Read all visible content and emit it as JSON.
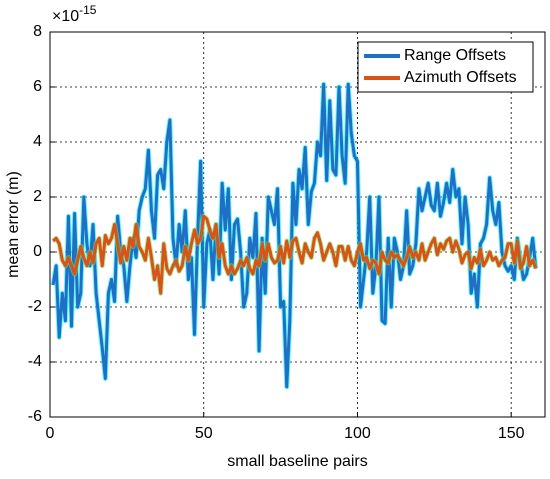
{
  "chart_data": {
    "type": "line",
    "y_exponent_label": "×10",
    "y_exponent_power": "-15",
    "xlabel": "small baseline pairs",
    "ylabel": "mean error (m)",
    "x": [
      1,
      2,
      3,
      4,
      5,
      6,
      7,
      8,
      9,
      10,
      11,
      12,
      13,
      14,
      15,
      16,
      17,
      18,
      19,
      20,
      21,
      22,
      23,
      24,
      25,
      26,
      27,
      28,
      29,
      30,
      31,
      32,
      33,
      34,
      35,
      36,
      37,
      38,
      39,
      40,
      41,
      42,
      43,
      44,
      45,
      46,
      47,
      48,
      49,
      50,
      51,
      52,
      53,
      54,
      55,
      56,
      57,
      58,
      59,
      60,
      61,
      62,
      63,
      64,
      65,
      66,
      67,
      68,
      69,
      70,
      71,
      72,
      73,
      74,
      75,
      76,
      77,
      78,
      79,
      80,
      81,
      82,
      83,
      84,
      85,
      86,
      87,
      88,
      89,
      90,
      91,
      92,
      93,
      94,
      95,
      96,
      97,
      98,
      99,
      100,
      101,
      102,
      103,
      104,
      105,
      106,
      107,
      108,
      109,
      110,
      111,
      112,
      113,
      114,
      115,
      116,
      117,
      118,
      119,
      120,
      121,
      122,
      123,
      124,
      125,
      126,
      127,
      128,
      129,
      130,
      131,
      132,
      133,
      134,
      135,
      136,
      137,
      138,
      139,
      140,
      141,
      142,
      143,
      144,
      145,
      146,
      147,
      148,
      149,
      150,
      151,
      152,
      153,
      154,
      155,
      156,
      157,
      158
    ],
    "series": [
      {
        "name": "Range Offsets",
        "color": "#1f6fc5",
        "halo": "#00f0ff",
        "values": [
          -1.2,
          -0.5,
          -3.1,
          -1.5,
          -2.5,
          1.3,
          -2.7,
          1.4,
          -2.0,
          -1.5,
          2.0,
          0.3,
          -0.5,
          1.0,
          -1.5,
          -2.5,
          -3.5,
          -4.6,
          -1.5,
          -1.0,
          -1.8,
          1.3,
          0.0,
          -0.5,
          -1.8,
          -0.5,
          0.5,
          -0.2,
          1.5,
          2.0,
          2.3,
          3.7,
          1.5,
          0.5,
          2.8,
          3.0,
          2.3,
          4.0,
          4.8,
          0.5,
          -0.5,
          1.0,
          0.0,
          1.5,
          -1.0,
          -0.2,
          -3.0,
          0.5,
          3.3,
          -2.0,
          0.3,
          0.8,
          -1.0,
          1.0,
          -0.8,
          2.5,
          0.8,
          2.3,
          -1.0,
          1.0,
          1.2,
          0.0,
          -2.0,
          -1.5,
          0.5,
          -0.2,
          1.4,
          -3.6,
          0.5,
          -1.5,
          2.0,
          1.5,
          1.0,
          2.3,
          -2.0,
          -1.8,
          -4.9,
          -2.5,
          2.5,
          1.0,
          3.0,
          2.3,
          3.8,
          1.0,
          2.2,
          2.5,
          4.0,
          3.5,
          6.1,
          2.6,
          5.5,
          3.0,
          2.8,
          6.0,
          3.5,
          2.5,
          6.1,
          4.3,
          3.5,
          3.3,
          -2.0,
          -1.0,
          0.0,
          2.0,
          -1.5,
          -0.5,
          2.0,
          -2.5,
          -2.6,
          0.5,
          -2.0,
          0.5,
          0.0,
          -1.0,
          -0.5,
          1.5,
          -0.8,
          -0.5,
          0.3,
          2.3,
          1.5,
          2.0,
          2.5,
          1.7,
          1.5,
          2.5,
          1.3,
          1.8,
          2.5,
          1.8,
          3.0,
          2.0,
          2.3,
          0.3,
          2.0,
          1.0,
          -1.5,
          -0.8,
          -2.0,
          0.3,
          0.5,
          1.0,
          2.7,
          1.5,
          1.0,
          1.8,
          0.0,
          -0.5,
          -0.7,
          -0.5,
          -1.0,
          0.5,
          -0.3,
          -1.0,
          -0.8,
          -0.2,
          0.5,
          -0.6
        ]
      },
      {
        "name": "Azimuth Offsets",
        "color": "#d95319",
        "halo": "#7ed957",
        "values": [
          0.4,
          0.5,
          0.3,
          -0.3,
          -0.5,
          -0.2,
          -0.5,
          -0.8,
          -0.3,
          0.2,
          -0.2,
          -0.5,
          0.0,
          -0.4,
          0.3,
          0.5,
          -0.5,
          0.6,
          0.3,
          0.5,
          1.0,
          0.3,
          -0.4,
          0.2,
          -0.3,
          0.5,
          0.2,
          1.0,
          0.2,
          0.0,
          -0.3,
          0.5,
          -0.2,
          -1.0,
          -0.5,
          -1.5,
          0.3,
          -0.6,
          -0.8,
          -0.5,
          -0.3,
          -0.7,
          -0.5,
          0.2,
          -0.3,
          0.3,
          0.8,
          0.3,
          0.5,
          1.3,
          1.2,
          0.8,
          0.5,
          1.0,
          -0.2,
          0.3,
          -0.5,
          -0.8,
          -0.5,
          -0.8,
          -0.6,
          -0.3,
          -0.5,
          -0.2,
          -0.6,
          -0.8,
          -0.3,
          -0.5,
          0.3,
          -0.3,
          0.3,
          -0.2,
          -0.4,
          -0.3,
          0.2,
          -0.4,
          0.4,
          -0.2,
          0.4,
          0.5,
          0.0,
          -0.4,
          0.3,
          0.0,
          -0.2,
          0.5,
          0.7,
          0.3,
          -0.3,
          0.0,
          0.3,
          0.0,
          -0.5,
          0.2,
          0.2,
          -0.3,
          0.2,
          -0.3,
          -0.5,
          0.0,
          0.3,
          -0.3,
          -0.2,
          -0.6,
          -0.3,
          -0.4,
          -0.8,
          0.0,
          -0.3,
          -0.4,
          0.0,
          -0.2,
          -0.1,
          -0.3,
          -0.5,
          -0.2,
          0.2,
          -0.2,
          0.0,
          -0.3,
          0.3,
          -0.3,
          0.0,
          0.3,
          0.5,
          -0.1,
          0.3,
          0.1,
          0.4,
          0.5,
          0.0,
          0.4,
          0.1,
          -0.4,
          -0.1,
          0.0,
          -0.6,
          -0.2,
          -0.4,
          0.1,
          -0.5,
          -0.3,
          0.0,
          -0.3,
          -0.2,
          -0.5,
          -0.3,
          -0.2,
          0.3,
          0.3,
          -0.4,
          0.4,
          -0.6,
          -0.4,
          0.2,
          -0.5,
          -0.3,
          -0.6
        ]
      }
    ],
    "xlim": [
      0,
      161
    ],
    "xticks": [
      0,
      50,
      100,
      150
    ],
    "ylim": [
      -6,
      8
    ],
    "yticks": [
      -6,
      -4,
      -2,
      0,
      2,
      4,
      6,
      8
    ],
    "grid": true,
    "legend": "upper right"
  }
}
